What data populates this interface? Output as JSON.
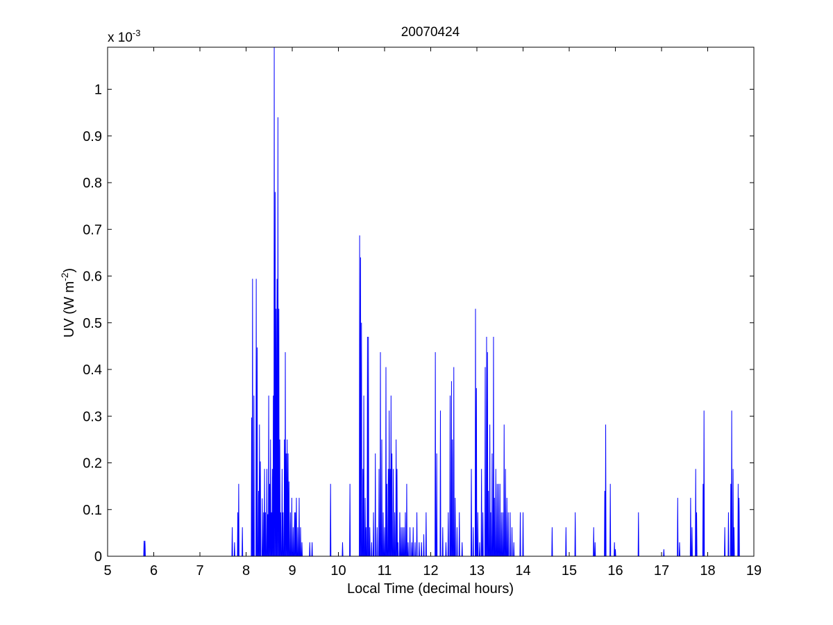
{
  "chart_data": {
    "type": "line",
    "title": "20070424",
    "xlabel": "Local Time (decimal hours)",
    "ylabel": {
      "base": "UV (W m",
      "superscript": "-2",
      "close": ")"
    },
    "y_multiplier": {
      "base": "x 10",
      "exponent": "-3"
    },
    "xlim": [
      5,
      19
    ],
    "ylim": [
      0,
      1.09
    ],
    "x_ticks": [
      5,
      6,
      7,
      8,
      9,
      10,
      11,
      12,
      13,
      14,
      15,
      16,
      17,
      18,
      19
    ],
    "x_tick_labels": [
      "5",
      "6",
      "7",
      "8",
      "9",
      "10",
      "11",
      "12",
      "13",
      "14",
      "15",
      "16",
      "17",
      "18",
      "19"
    ],
    "y_ticks": [
      0,
      0.1,
      0.2,
      0.3,
      0.4,
      0.5,
      0.6,
      0.7,
      0.8,
      0.9,
      1.0
    ],
    "y_tick_labels": [
      "0",
      "0.1",
      "0.2",
      "0.3",
      "0.4",
      "0.5",
      "0.6",
      "0.7",
      "0.8",
      "0.9",
      "1"
    ],
    "grid": false,
    "line_color": "#0000ff",
    "series": [
      {
        "values_unit": "x 10^-3 W m^-2",
        "spikes": [
          [
            5.79,
            0.033
          ],
          [
            5.81,
            0.033
          ],
          [
            7.7,
            0.062
          ],
          [
            7.75,
            0.03
          ],
          [
            7.82,
            0.094
          ],
          [
            7.84,
            0.155
          ],
          [
            7.92,
            0.062
          ],
          [
            8.12,
            0.297
          ],
          [
            8.14,
            0.594
          ],
          [
            8.17,
            0.344
          ],
          [
            8.22,
            0.594
          ],
          [
            8.24,
            0.447
          ],
          [
            8.27,
            0.14
          ],
          [
            8.29,
            0.282
          ],
          [
            8.31,
            0.203
          ],
          [
            8.35,
            0.124
          ],
          [
            8.38,
            0.094
          ],
          [
            8.4,
            0.187
          ],
          [
            8.42,
            0.094
          ],
          [
            8.45,
            0.187
          ],
          [
            8.47,
            0.09
          ],
          [
            8.49,
            0.344
          ],
          [
            8.51,
            0.155
          ],
          [
            8.53,
            0.25
          ],
          [
            8.55,
            0.094
          ],
          [
            8.57,
            0.187
          ],
          [
            8.59,
            0.344
          ],
          [
            8.61,
            1.09
          ],
          [
            8.63,
            0.78
          ],
          [
            8.65,
            0.53
          ],
          [
            8.67,
            0.594
          ],
          [
            8.69,
            0.94
          ],
          [
            8.71,
            0.53
          ],
          [
            8.73,
            0.25
          ],
          [
            8.75,
            0.094
          ],
          [
            8.78,
            0.187
          ],
          [
            8.8,
            0.094
          ],
          [
            8.83,
            0.25
          ],
          [
            8.85,
            0.437
          ],
          [
            8.87,
            0.22
          ],
          [
            8.89,
            0.25
          ],
          [
            8.91,
            0.22
          ],
          [
            8.93,
            0.16
          ],
          [
            8.96,
            0.094
          ],
          [
            8.99,
            0.125
          ],
          [
            9.02,
            0.062
          ],
          [
            9.05,
            0.094
          ],
          [
            9.07,
            0.094
          ],
          [
            9.09,
            0.125
          ],
          [
            9.12,
            0.062
          ],
          [
            9.15,
            0.125
          ],
          [
            9.18,
            0.062
          ],
          [
            9.21,
            0.03
          ],
          [
            9.38,
            0.03
          ],
          [
            9.43,
            0.03
          ],
          [
            9.83,
            0.155
          ],
          [
            10.09,
            0.03
          ],
          [
            10.25,
            0.155
          ],
          [
            10.46,
            0.687
          ],
          [
            10.48,
            0.64
          ],
          [
            10.5,
            0.5
          ],
          [
            10.53,
            0.187
          ],
          [
            10.55,
            0.344
          ],
          [
            10.58,
            0.125
          ],
          [
            10.6,
            0.062
          ],
          [
            10.63,
            0.47
          ],
          [
            10.65,
            0.47
          ],
          [
            10.68,
            0.062
          ],
          [
            10.72,
            0.03
          ],
          [
            10.76,
            0.094
          ],
          [
            10.8,
            0.22
          ],
          [
            10.84,
            0.062
          ],
          [
            10.88,
            0.187
          ],
          [
            10.91,
            0.437
          ],
          [
            10.94,
            0.25
          ],
          [
            10.97,
            0.094
          ],
          [
            11.0,
            0.062
          ],
          [
            11.03,
            0.405
          ],
          [
            11.05,
            0.155
          ],
          [
            11.08,
            0.187
          ],
          [
            11.1,
            0.312
          ],
          [
            11.12,
            0.187
          ],
          [
            11.14,
            0.344
          ],
          [
            11.16,
            0.22
          ],
          [
            11.19,
            0.187
          ],
          [
            11.22,
            0.094
          ],
          [
            11.25,
            0.25
          ],
          [
            11.27,
            0.187
          ],
          [
            11.29,
            0.03
          ],
          [
            11.33,
            0.094
          ],
          [
            11.36,
            0.062
          ],
          [
            11.39,
            0.062
          ],
          [
            11.42,
            0.062
          ],
          [
            11.45,
            0.094
          ],
          [
            11.48,
            0.155
          ],
          [
            11.51,
            0.03
          ],
          [
            11.55,
            0.062
          ],
          [
            11.59,
            0.03
          ],
          [
            11.62,
            0.062
          ],
          [
            11.66,
            0.03
          ],
          [
            11.7,
            0.094
          ],
          [
            11.75,
            0.03
          ],
          [
            11.8,
            0.03
          ],
          [
            11.85,
            0.047
          ],
          [
            11.9,
            0.094
          ],
          [
            12.1,
            0.437
          ],
          [
            12.13,
            0.22
          ],
          [
            12.21,
            0.312
          ],
          [
            12.26,
            0.062
          ],
          [
            12.33,
            0.03
          ],
          [
            12.38,
            0.094
          ],
          [
            12.42,
            0.344
          ],
          [
            12.45,
            0.375
          ],
          [
            12.47,
            0.25
          ],
          [
            12.5,
            0.405
          ],
          [
            12.53,
            0.125
          ],
          [
            12.57,
            0.062
          ],
          [
            12.62,
            0.094
          ],
          [
            12.68,
            0.03
          ],
          [
            12.88,
            0.187
          ],
          [
            12.92,
            0.062
          ],
          [
            12.97,
            0.53
          ],
          [
            12.99,
            0.36
          ],
          [
            13.02,
            0.094
          ],
          [
            13.06,
            0.03
          ],
          [
            13.1,
            0.187
          ],
          [
            13.13,
            0.094
          ],
          [
            13.18,
            0.405
          ],
          [
            13.21,
            0.47
          ],
          [
            13.23,
            0.437
          ],
          [
            13.25,
            0.14
          ],
          [
            13.28,
            0.282
          ],
          [
            13.3,
            0.094
          ],
          [
            13.33,
            0.22
          ],
          [
            13.36,
            0.47
          ],
          [
            13.38,
            0.125
          ],
          [
            13.41,
            0.187
          ],
          [
            13.44,
            0.155
          ],
          [
            13.47,
            0.155
          ],
          [
            13.5,
            0.155
          ],
          [
            13.53,
            0.094
          ],
          [
            13.56,
            0.094
          ],
          [
            13.59,
            0.282
          ],
          [
            13.62,
            0.187
          ],
          [
            13.65,
            0.125
          ],
          [
            13.68,
            0.094
          ],
          [
            13.72,
            0.094
          ],
          [
            13.76,
            0.062
          ],
          [
            13.8,
            0.03
          ],
          [
            13.94,
            0.094
          ],
          [
            14.0,
            0.094
          ],
          [
            14.63,
            0.062
          ],
          [
            14.93,
            0.062
          ],
          [
            15.13,
            0.094
          ],
          [
            15.53,
            0.062
          ],
          [
            15.56,
            0.03
          ],
          [
            15.77,
            0.14
          ],
          [
            15.79,
            0.282
          ],
          [
            15.89,
            0.155
          ],
          [
            15.98,
            0.03
          ],
          [
            16.0,
            0.015
          ],
          [
            16.5,
            0.094
          ],
          [
            17.05,
            0.015
          ],
          [
            17.35,
            0.125
          ],
          [
            17.39,
            0.03
          ],
          [
            17.63,
            0.125
          ],
          [
            17.66,
            0.062
          ],
          [
            17.74,
            0.187
          ],
          [
            17.76,
            0.094
          ],
          [
            17.9,
            0.155
          ],
          [
            17.92,
            0.312
          ],
          [
            18.37,
            0.062
          ],
          [
            18.45,
            0.094
          ],
          [
            18.5,
            0.155
          ],
          [
            18.52,
            0.312
          ],
          [
            18.55,
            0.187
          ],
          [
            18.57,
            0.062
          ],
          [
            18.66,
            0.155
          ],
          [
            18.68,
            0.125
          ]
        ]
      }
    ]
  }
}
